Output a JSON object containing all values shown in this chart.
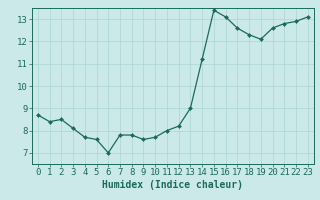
{
  "x": [
    0,
    1,
    2,
    3,
    4,
    5,
    6,
    7,
    8,
    9,
    10,
    11,
    12,
    13,
    14,
    15,
    16,
    17,
    18,
    19,
    20,
    21,
    22,
    23
  ],
  "y": [
    8.7,
    8.4,
    8.5,
    8.1,
    7.7,
    7.6,
    7.0,
    7.8,
    7.8,
    7.6,
    7.7,
    8.0,
    8.2,
    9.0,
    11.2,
    13.4,
    13.1,
    12.6,
    12.3,
    12.1,
    12.6,
    12.8,
    12.9,
    13.1
  ],
  "line_color": "#1a6b5a",
  "marker": "D",
  "marker_size": 2.0,
  "bg_color": "#cce9e9",
  "grid_color": "#aad4d4",
  "xlabel": "Humidex (Indice chaleur)",
  "xlim": [
    -0.5,
    23.5
  ],
  "ylim": [
    6.5,
    13.5
  ],
  "yticks": [
    7,
    8,
    9,
    10,
    11,
    12,
    13
  ],
  "xticks": [
    0,
    1,
    2,
    3,
    4,
    5,
    6,
    7,
    8,
    9,
    10,
    11,
    12,
    13,
    14,
    15,
    16,
    17,
    18,
    19,
    20,
    21,
    22,
    23
  ],
  "tick_color": "#1a6b5a",
  "label_color": "#1a6b5a",
  "font_size": 6.5
}
